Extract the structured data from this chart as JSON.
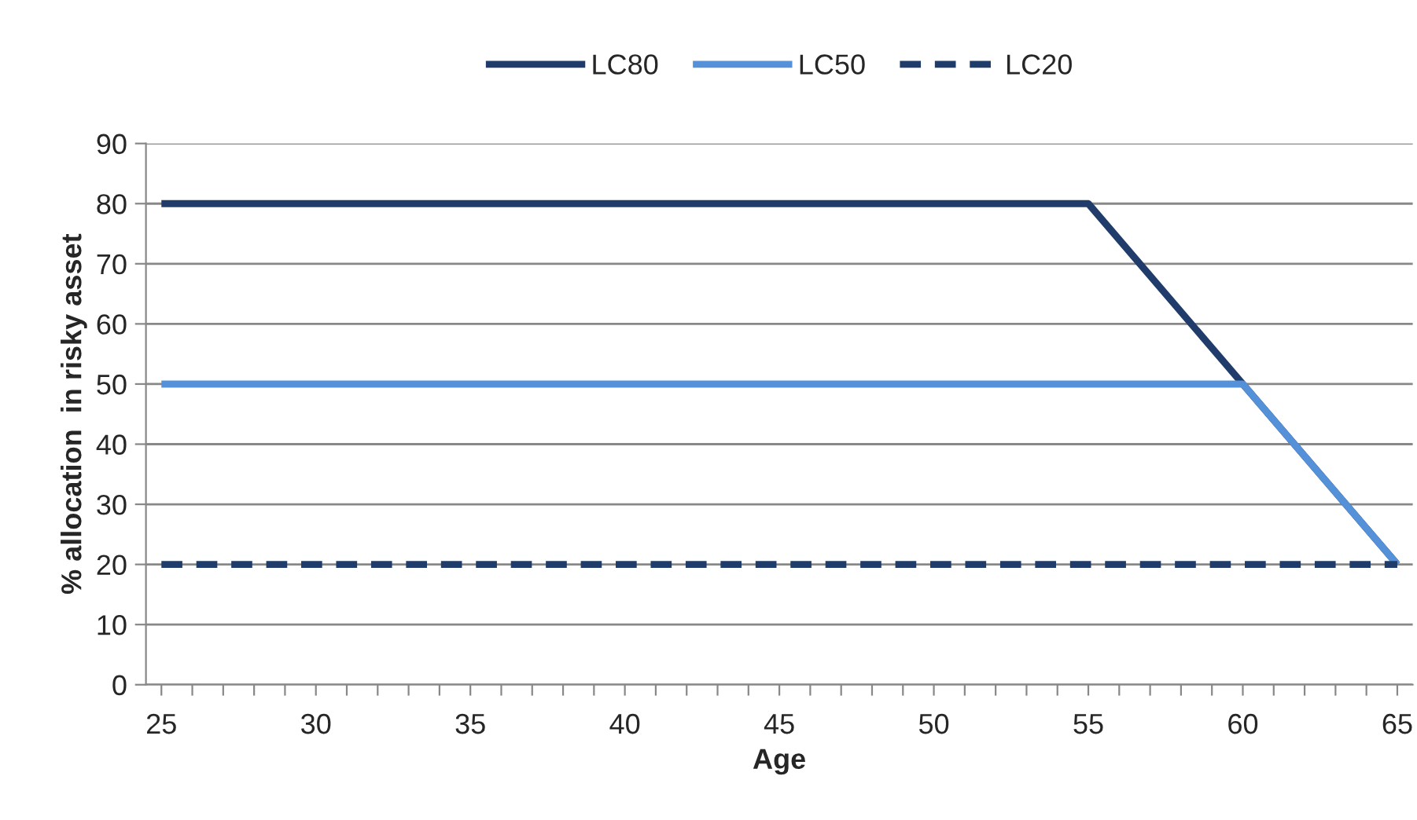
{
  "chart_data": {
    "type": "line",
    "xlabel": "Age",
    "ylabel": "% allocation  in risky asset",
    "series": [
      {
        "name": "LC80",
        "color": "#1f3c6a",
        "x": [
          25,
          55,
          65
        ],
        "values": [
          80,
          80,
          20
        ],
        "line_style": "solid"
      },
      {
        "name": "LC50",
        "color": "#5591d8",
        "x": [
          25,
          60,
          65
        ],
        "values": [
          50,
          50,
          20
        ],
        "line_style": "solid"
      },
      {
        "name": "LC20",
        "color": "#1f3c6a",
        "x": [
          25,
          65
        ],
        "values": [
          20,
          20
        ],
        "line_style": "dashed"
      }
    ],
    "xlim": [
      24.5,
      65.5
    ],
    "xticks": [
      25,
      {
        "value": 26,
        "label": null
      },
      {
        "value": 27,
        "label": null
      },
      {
        "value": 28,
        "label": null
      },
      {
        "value": 29,
        "label": null
      },
      30,
      {
        "value": 31,
        "label": null
      },
      {
        "value": 32,
        "label": null
      },
      {
        "value": 33,
        "label": null
      },
      {
        "value": 34,
        "label": null
      },
      35,
      {
        "value": 36,
        "label": null
      },
      {
        "value": 37,
        "label": null
      },
      {
        "value": 38,
        "label": null
      },
      {
        "value": 39,
        "label": null
      },
      40,
      {
        "value": 41,
        "label": null
      },
      {
        "value": 42,
        "label": null
      },
      {
        "value": 43,
        "label": null
      },
      {
        "value": 44,
        "label": null
      },
      45,
      {
        "value": 46,
        "label": null
      },
      {
        "value": 47,
        "label": null
      },
      {
        "value": 48,
        "label": null
      },
      {
        "value": 49,
        "label": null
      },
      50,
      {
        "value": 51,
        "label": null
      },
      {
        "value": 52,
        "label": null
      },
      {
        "value": 53,
        "label": null
      },
      {
        "value": 54,
        "label": null
      },
      55,
      {
        "value": 56,
        "label": null
      },
      {
        "value": 57,
        "label": null
      },
      {
        "value": 58,
        "label": null
      },
      {
        "value": 59,
        "label": null
      },
      60,
      {
        "value": 61,
        "label": null
      },
      {
        "value": 62,
        "label": null
      },
      {
        "value": 63,
        "label": null
      },
      {
        "value": 64,
        "label": null
      },
      65
    ],
    "ylim": [
      0,
      90
    ],
    "yticks": [
      0,
      10,
      20,
      30,
      40,
      50,
      60,
      70,
      80,
      90
    ],
    "grid": "y",
    "legend": "top",
    "marker": "none"
  }
}
